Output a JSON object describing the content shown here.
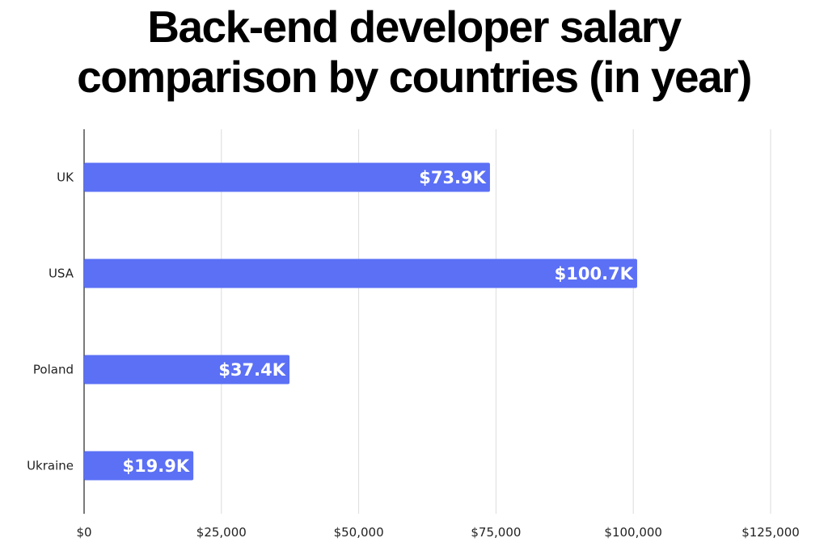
{
  "title_lines": [
    "Back-end developer salary",
    "comparison by countries (in year)"
  ],
  "colors": {
    "bar": "#5b70f5",
    "grid": "#dcdcdc",
    "axis": "#222222",
    "bar_label": "#ffffff",
    "background": "#ffffff"
  },
  "chart_data": {
    "type": "bar",
    "orientation": "horizontal",
    "title": "Back-end developer salary comparison by countries (in year)",
    "xlabel": "",
    "ylabel": "",
    "categories": [
      "UK",
      "USA",
      "Poland",
      "Ukraine"
    ],
    "values": [
      73900,
      100700,
      37400,
      19900
    ],
    "value_labels": [
      "$73.9K",
      "$100.7K",
      "$37.4K",
      "$19.9K"
    ],
    "xlim": [
      0,
      125000
    ],
    "x_ticks": [
      0,
      25000,
      50000,
      75000,
      100000,
      125000
    ],
    "x_tick_labels": [
      "$0",
      "$25,000",
      "$50,000",
      "$75,000",
      "$100,000",
      "$125,000"
    ],
    "grid": true,
    "legend": "none"
  }
}
